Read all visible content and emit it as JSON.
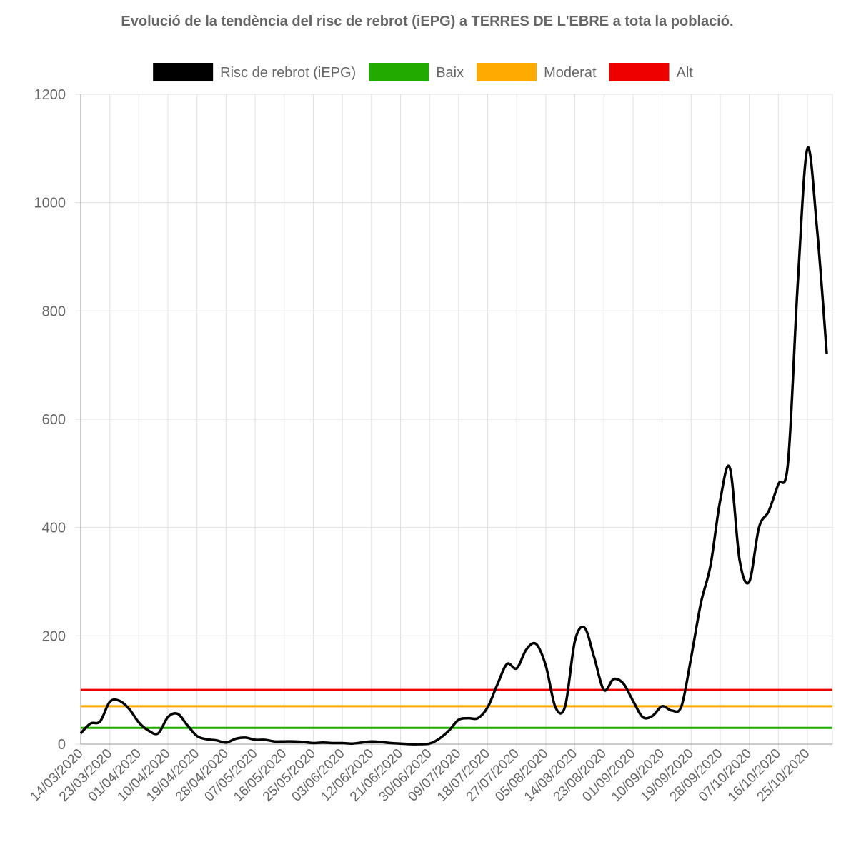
{
  "chart_data": {
    "type": "line",
    "title": "Evolució de la tendència del risc de rebrot (iEPG) a TERRES DE L'EBRE a tota la població.",
    "categories": [
      "14/03/2020",
      null,
      null,
      "23/03/2020",
      null,
      null,
      "01/04/2020",
      null,
      null,
      "10/04/2020",
      null,
      null,
      "19/04/2020",
      null,
      null,
      "28/04/2020",
      null,
      null,
      "07/05/2020",
      null,
      null,
      "16/05/2020",
      null,
      null,
      "25/05/2020",
      null,
      null,
      "03/06/2020",
      null,
      null,
      "12/06/2020",
      null,
      null,
      "21/06/2020",
      null,
      null,
      "30/06/2020",
      null,
      null,
      "09/07/2020",
      null,
      null,
      "18/07/2020",
      null,
      null,
      "27/07/2020",
      null,
      null,
      "05/08/2020",
      null,
      null,
      "14/08/2020",
      null,
      null,
      "23/08/2020",
      null,
      null,
      "01/09/2020",
      null,
      null,
      "10/09/2020",
      null,
      null,
      "19/09/2020",
      null,
      null,
      "28/09/2020",
      null,
      null,
      "07/10/2020",
      null,
      null,
      "16/10/2020",
      null,
      null,
      "25/10/2020",
      null,
      null
    ],
    "series": [
      {
        "name": "Risc de rebrot (iEPG)",
        "color": "#000000",
        "values": [
          20,
          38,
          42,
          78,
          80,
          65,
          40,
          25,
          20,
          50,
          56,
          35,
          15,
          9,
          7,
          3,
          10,
          12,
          8,
          8,
          5,
          5,
          5,
          4,
          2,
          3,
          2,
          2,
          1,
          3,
          5,
          4,
          2,
          1,
          0,
          0,
          1,
          10,
          25,
          45,
          48,
          48,
          68,
          110,
          148,
          140,
          175,
          185,
          145,
          68,
          70,
          190,
          215,
          160,
          100,
          120,
          112,
          80,
          50,
          52,
          70,
          62,
          70,
          160,
          260,
          330,
          450,
          510,
          340,
          300,
          400,
          430,
          480,
          520,
          850,
          1100,
          950,
          720
        ]
      }
    ],
    "thresholds": [
      {
        "name": "Baix",
        "color": "#22aa00",
        "value": 30
      },
      {
        "name": "Moderat",
        "color": "#ffaa00",
        "value": 70
      },
      {
        "name": "Alt",
        "color": "#ee0000",
        "value": 100
      }
    ],
    "ylim": [
      0,
      1200
    ],
    "yticks": [
      0,
      200,
      400,
      600,
      800,
      1000,
      1200
    ],
    "grid": true
  }
}
